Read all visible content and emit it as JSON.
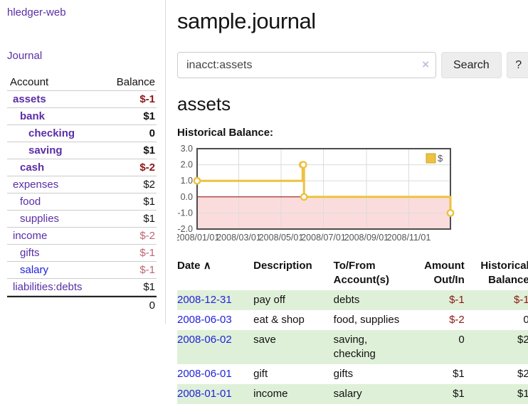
{
  "sidebar": {
    "brand": "hledger-web",
    "journal_link": "Journal",
    "accounts_table": {
      "header_account": "Account",
      "header_balance": "Balance",
      "rows": [
        {
          "name": "assets",
          "level": 0,
          "bold": true,
          "balance": "$-1"
        },
        {
          "name": "bank",
          "level": 1,
          "bold": true,
          "balance": "$1"
        },
        {
          "name": "checking",
          "level": 2,
          "bold": true,
          "balance": "0"
        },
        {
          "name": "saving",
          "level": 2,
          "bold": true,
          "balance": "$1"
        },
        {
          "name": "cash",
          "level": 1,
          "bold": true,
          "balance": "$-2"
        },
        {
          "name": "expenses",
          "level": 0,
          "bold": false,
          "balance": "$2"
        },
        {
          "name": "food",
          "level": 1,
          "bold": false,
          "balance": "$1"
        },
        {
          "name": "supplies",
          "level": 1,
          "bold": false,
          "balance": "$1"
        },
        {
          "name": "income",
          "level": 0,
          "bold": false,
          "balance": "$-2"
        },
        {
          "name": "gifts",
          "level": 1,
          "bold": false,
          "balance": "$-1"
        },
        {
          "name": "salary",
          "level": 1,
          "bold": false,
          "balance": "$-1"
        },
        {
          "name": "liabilities:debts",
          "level": 0,
          "bold": false,
          "balance": "$1"
        }
      ],
      "total": "0"
    }
  },
  "main": {
    "title": "sample.journal",
    "search": {
      "value": "inacct:assets",
      "clear_icon": "×",
      "button_label": "Search",
      "help_label": "?"
    },
    "account_heading": "assets",
    "chart_label": "Historical Balance:",
    "register": {
      "headers": {
        "date": "Date",
        "sort_icon": "∧",
        "description": "Description",
        "accounts": "To/From Account(s)",
        "amount": "Amount Out/In",
        "balance": "Historical Balance"
      },
      "rows": [
        {
          "date": "2008-12-31",
          "description": "pay off",
          "accounts": "debts",
          "amount": "$-1",
          "balance": "$-1"
        },
        {
          "date": "2008-06-03",
          "description": "eat & shop",
          "accounts": "food, supplies",
          "amount": "$-2",
          "balance": "0"
        },
        {
          "date": "2008-06-02",
          "description": "save",
          "accounts": "saving, checking",
          "amount": "0",
          "balance": "$2"
        },
        {
          "date": "2008-06-01",
          "description": "gift",
          "accounts": "gifts",
          "amount": "$1",
          "balance": "$2"
        },
        {
          "date": "2008-01-01",
          "description": "income",
          "accounts": "salary",
          "amount": "$1",
          "balance": "$1"
        }
      ]
    }
  },
  "chart_data": {
    "type": "line",
    "title": "Historical Balance:",
    "legend": [
      {
        "label": "$",
        "color": "#edc240"
      }
    ],
    "legend_position": "top-right",
    "grid": true,
    "xlim": [
      "2008-01-01",
      "2008-12-31"
    ],
    "ylim": [
      -2.0,
      3.0
    ],
    "y_ticks": [
      3.0,
      2.0,
      1.0,
      0.0,
      -1.0,
      -2.0
    ],
    "x_ticks": [
      "2008/01/01",
      "2008/03/01",
      "2008/05/01",
      "2008/07/01",
      "2008/09/01",
      "2008/11/01"
    ],
    "series": [
      {
        "name": "$",
        "style": "steps-with-markers",
        "points": [
          {
            "x": "2008-01-01",
            "y": 1
          },
          {
            "x": "2008-06-01",
            "y": 2
          },
          {
            "x": "2008-06-02",
            "y": 2
          },
          {
            "x": "2008-06-03",
            "y": 0
          },
          {
            "x": "2008-12-31",
            "y": -1
          }
        ]
      }
    ],
    "colors": {
      "line": "#edc240",
      "marker_fill": "#ffffff",
      "negative_region_fill": "#fbdcdc",
      "zero_line": "#8b0000",
      "gridline": "#dcdcdc",
      "plot_border": "#4d4d4d",
      "tick_label": "#545454"
    }
  }
}
